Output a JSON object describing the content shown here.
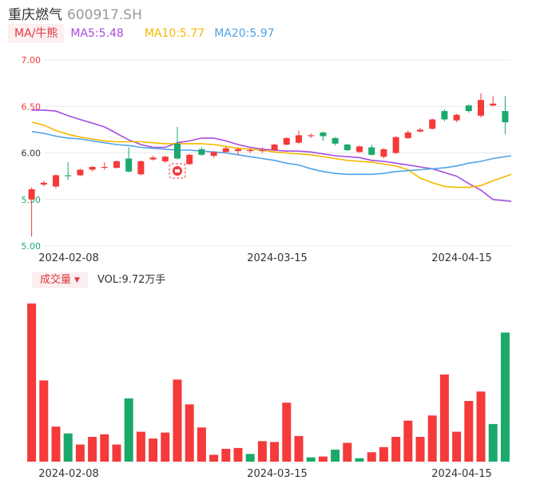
{
  "header": {
    "name": "重庆燃气",
    "code": "600917.SH"
  },
  "ma": {
    "tag": "MA/牛熊",
    "ma5": "MA5:5.48",
    "ma10": "MA10:5.77",
    "ma20": "MA20:5.97",
    "colors": {
      "ma5": "#a64de0",
      "ma10": "#f5b800",
      "ma20": "#4fa3e8"
    }
  },
  "volume": {
    "tag": "成交量",
    "caret": "▼",
    "label": "VOL:9.72万手"
  },
  "colors": {
    "up": "#f43a3a",
    "down": "#1aa96b",
    "grid": "#e8e8e8"
  },
  "chart_data": [
    {
      "type": "candlestick",
      "x_tick_labels": [
        "2024-02-08",
        "2024-03-15",
        "2024-04-15"
      ],
      "x_tick_index": [
        1,
        20,
        35
      ],
      "y_ticks": [
        {
          "value": 7.0,
          "label": "7.00"
        },
        {
          "value": 6.5,
          "label": "6.50"
        },
        {
          "value": 6.0,
          "label": "6.00"
        },
        {
          "value": 5.5,
          "label": "5.50"
        },
        {
          "value": 5.0,
          "label": "5.00"
        }
      ],
      "ylim": [
        5.0,
        7.0
      ],
      "grid": true,
      "marker_index": 12,
      "candles": [
        {
          "o": 5.5,
          "c": 5.61,
          "h": 5.63,
          "l": 5.1
        },
        {
          "o": 5.66,
          "c": 5.68,
          "h": 5.7,
          "l": 5.64
        },
        {
          "o": 5.64,
          "c": 5.76,
          "h": 5.77,
          "l": 5.62
        },
        {
          "o": 5.76,
          "c": 5.75,
          "h": 5.9,
          "l": 5.71
        },
        {
          "o": 5.76,
          "c": 5.82,
          "h": 5.83,
          "l": 5.75
        },
        {
          "o": 5.82,
          "c": 5.85,
          "h": 5.86,
          "l": 5.8
        },
        {
          "o": 5.84,
          "c": 5.85,
          "h": 5.9,
          "l": 5.82
        },
        {
          "o": 5.84,
          "c": 5.91,
          "h": 5.92,
          "l": 5.83
        },
        {
          "o": 5.94,
          "c": 5.8,
          "h": 6.06,
          "l": 5.79
        },
        {
          "o": 5.77,
          "c": 5.91,
          "h": 5.92,
          "l": 5.76
        },
        {
          "o": 5.93,
          "c": 5.95,
          "h": 5.97,
          "l": 5.92
        },
        {
          "o": 5.91,
          "c": 5.96,
          "h": 5.97,
          "l": 5.89
        },
        {
          "o": 6.1,
          "c": 5.94,
          "h": 6.28,
          "l": 5.93
        },
        {
          "o": 5.88,
          "c": 5.98,
          "h": 5.99,
          "l": 5.87
        },
        {
          "o": 6.04,
          "c": 5.98,
          "h": 6.06,
          "l": 5.97
        },
        {
          "o": 5.97,
          "c": 6.01,
          "h": 6.02,
          "l": 5.95
        },
        {
          "o": 6.01,
          "c": 6.05,
          "h": 6.07,
          "l": 6.0
        },
        {
          "o": 6.02,
          "c": 6.04,
          "h": 6.06,
          "l": 5.98
        },
        {
          "o": 6.02,
          "c": 6.03,
          "h": 6.05,
          "l": 6.0
        },
        {
          "o": 6.02,
          "c": 6.03,
          "h": 6.06,
          "l": 6.0
        },
        {
          "o": 6.03,
          "c": 6.09,
          "h": 6.1,
          "l": 6.02
        },
        {
          "o": 6.09,
          "c": 6.16,
          "h": 6.17,
          "l": 6.08
        },
        {
          "o": 6.11,
          "c": 6.19,
          "h": 6.24,
          "l": 6.1
        },
        {
          "o": 6.18,
          "c": 6.19,
          "h": 6.21,
          "l": 6.16
        },
        {
          "o": 6.22,
          "c": 6.18,
          "h": 6.23,
          "l": 6.13
        },
        {
          "o": 6.16,
          "c": 6.1,
          "h": 6.17,
          "l": 6.08
        },
        {
          "o": 6.09,
          "c": 6.03,
          "h": 6.1,
          "l": 6.02
        },
        {
          "o": 6.01,
          "c": 6.07,
          "h": 6.08,
          "l": 6.0
        },
        {
          "o": 6.06,
          "c": 5.98,
          "h": 6.09,
          "l": 5.97
        },
        {
          "o": 5.96,
          "c": 6.04,
          "h": 6.05,
          "l": 5.94
        },
        {
          "o": 6.0,
          "c": 6.17,
          "h": 6.18,
          "l": 5.99
        },
        {
          "o": 6.16,
          "c": 6.22,
          "h": 6.24,
          "l": 6.15
        },
        {
          "o": 6.23,
          "c": 6.25,
          "h": 6.27,
          "l": 6.22
        },
        {
          "o": 6.26,
          "c": 6.36,
          "h": 6.37,
          "l": 6.25
        },
        {
          "o": 6.45,
          "c": 6.36,
          "h": 6.47,
          "l": 6.34
        },
        {
          "o": 6.35,
          "c": 6.41,
          "h": 6.42,
          "l": 6.33
        },
        {
          "o": 6.51,
          "c": 6.45,
          "h": 6.52,
          "l": 6.43
        },
        {
          "o": 6.4,
          "c": 6.57,
          "h": 6.64,
          "l": 6.38
        },
        {
          "o": 6.51,
          "c": 6.53,
          "h": 6.61,
          "l": 6.5
        },
        {
          "o": 6.45,
          "c": 6.33,
          "h": 6.61,
          "l": 6.2
        }
      ],
      "series": [
        {
          "name": "MA5",
          "values": [
            6.46,
            6.46,
            6.45,
            6.4,
            6.36,
            6.32,
            6.28,
            6.21,
            6.14,
            6.09,
            6.06,
            6.06,
            6.11,
            6.13,
            6.16,
            6.16,
            6.13,
            6.09,
            6.06,
            6.04,
            6.03,
            6.02,
            6.02,
            6.01,
            5.99,
            5.97,
            5.96,
            5.95,
            5.92,
            5.91,
            5.89,
            5.87,
            5.85,
            5.83,
            5.79,
            5.75,
            5.67,
            5.6,
            5.5,
            5.48
          ]
        },
        {
          "name": "MA10",
          "values": [
            6.33,
            6.3,
            6.24,
            6.2,
            6.17,
            6.15,
            6.13,
            6.12,
            6.12,
            6.12,
            6.11,
            6.1,
            6.1,
            6.1,
            6.1,
            6.09,
            6.07,
            6.05,
            6.04,
            6.03,
            6.01,
            6.0,
            5.99,
            5.98,
            5.96,
            5.94,
            5.92,
            5.91,
            5.9,
            5.88,
            5.86,
            5.82,
            5.73,
            5.68,
            5.64,
            5.63,
            5.63,
            5.65,
            5.7,
            5.77
          ]
        },
        {
          "name": "MA20",
          "values": [
            6.23,
            6.21,
            6.18,
            6.16,
            6.15,
            6.13,
            6.11,
            6.09,
            6.08,
            6.06,
            6.05,
            6.04,
            6.03,
            6.03,
            6.02,
            6.01,
            6.0,
            5.98,
            5.96,
            5.94,
            5.92,
            5.89,
            5.87,
            5.83,
            5.8,
            5.78,
            5.77,
            5.77,
            5.77,
            5.78,
            5.8,
            5.81,
            5.82,
            5.83,
            5.84,
            5.86,
            5.89,
            5.91,
            5.94,
            5.97
          ]
        }
      ]
    },
    {
      "type": "bar",
      "name": "成交量",
      "x_tick_labels": [
        "2024-02-08",
        "2024-03-15",
        "2024-04-15"
      ],
      "direction": [
        "up",
        "up",
        "up",
        "down",
        "up",
        "up",
        "up",
        "up",
        "down",
        "up",
        "up",
        "up",
        "up",
        "up",
        "up",
        "up",
        "up",
        "up",
        "down",
        "up",
        "up",
        "up",
        "up",
        "down",
        "up",
        "down",
        "up",
        "down",
        "up",
        "up",
        "up",
        "up",
        "up",
        "up",
        "up",
        "up",
        "up",
        "up",
        "down",
        "down"
      ],
      "values": [
        18.5,
        9.5,
        4.1,
        3.3,
        2.0,
        2.9,
        3.2,
        2.0,
        7.4,
        3.5,
        2.7,
        3.4,
        9.6,
        6.7,
        4.0,
        0.8,
        1.5,
        1.6,
        0.9,
        2.4,
        2.3,
        6.9,
        3.0,
        0.5,
        0.6,
        1.4,
        2.2,
        0.4,
        1.1,
        1.7,
        2.9,
        4.8,
        2.9,
        5.4,
        10.2,
        3.5,
        7.1,
        8.2,
        4.4,
        15.1
      ]
    }
  ]
}
